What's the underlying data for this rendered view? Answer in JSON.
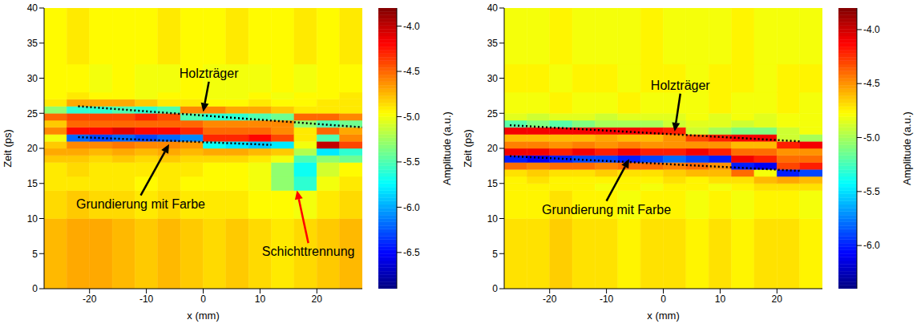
{
  "chart_data": [
    {
      "type": "heatmap",
      "xlabel": "x (mm)",
      "ylabel": "Zeit (ps)",
      "xlim": [
        -28,
        28
      ],
      "ylim": [
        0,
        40
      ],
      "xticks": [
        -20,
        -10,
        0,
        10,
        20
      ],
      "yticks": [
        0,
        5,
        10,
        15,
        20,
        25,
        30,
        35,
        40
      ],
      "x_edges": [
        -28,
        -24,
        -20,
        -16,
        -12,
        -8,
        -4,
        0,
        4,
        8,
        12,
        16,
        20,
        24,
        28
      ],
      "y_edges": [
        0,
        10,
        14,
        16,
        18,
        19,
        20,
        21,
        22,
        23,
        24,
        25,
        26,
        27,
        28,
        32,
        40
      ],
      "values": [
        [
          -4.75,
          -4.7,
          -4.7,
          -4.75,
          -4.8,
          -4.75,
          -4.8,
          -4.85,
          -4.8,
          -4.85,
          -4.9,
          -4.85,
          -4.8,
          -4.75
        ],
        [
          -4.85,
          -4.8,
          -4.85,
          -4.85,
          -4.9,
          -4.85,
          -4.9,
          -4.9,
          -4.9,
          -4.95,
          -4.95,
          -5.0,
          -4.9,
          -4.85
        ],
        [
          -4.9,
          -4.9,
          -4.9,
          -4.9,
          -4.95,
          -4.9,
          -4.95,
          -4.95,
          -4.95,
          -5.0,
          -5.3,
          -5.6,
          -5.0,
          -4.9
        ],
        [
          -4.9,
          -4.85,
          -4.9,
          -4.9,
          -4.9,
          -4.9,
          -4.9,
          -4.95,
          -4.95,
          -5.0,
          -5.3,
          -5.7,
          -5.1,
          -4.95
        ],
        [
          -4.8,
          -4.8,
          -4.85,
          -4.8,
          -4.85,
          -4.8,
          -4.85,
          -4.85,
          -4.85,
          -4.9,
          -5.0,
          -5.5,
          -5.3,
          -5.4
        ],
        [
          -4.7,
          -4.7,
          -4.75,
          -4.7,
          -4.75,
          -4.7,
          -4.75,
          -4.7,
          -4.7,
          -4.75,
          -4.8,
          -5.2,
          -5.8,
          -5.6
        ],
        [
          -4.8,
          -4.6,
          -4.6,
          -4.55,
          -4.6,
          -4.6,
          -4.65,
          -5.7,
          -5.8,
          -5.9,
          -5.8,
          -5.0,
          -4.0,
          -4.4
        ],
        [
          -5.0,
          -6.2,
          -6.3,
          -6.2,
          -6.3,
          -6.2,
          -6.1,
          -4.3,
          -4.3,
          -4.2,
          -4.4,
          -4.9,
          -5.5,
          -4.6
        ],
        [
          -4.6,
          -4.2,
          -4.2,
          -4.1,
          -4.2,
          -4.2,
          -4.3,
          -4.5,
          -4.5,
          -4.5,
          -4.6,
          -4.9,
          -4.5,
          -4.7
        ],
        [
          -4.8,
          -4.5,
          -4.5,
          -4.5,
          -4.5,
          -4.5,
          -4.5,
          -4.6,
          -4.6,
          -4.6,
          -4.6,
          -5.3,
          -5.5,
          -5.4
        ],
        [
          -4.5,
          -4.4,
          -4.4,
          -4.4,
          -4.3,
          -4.4,
          -5.5,
          -5.6,
          -5.6,
          -5.5,
          -5.4,
          -4.5,
          -4.5,
          -4.6
        ],
        [
          -5.3,
          -5.6,
          -5.6,
          -5.5,
          -5.6,
          -5.5,
          -4.6,
          -4.6,
          -4.7,
          -4.7,
          -4.8,
          -4.9,
          -4.9,
          -4.9
        ],
        [
          -4.9,
          -4.7,
          -4.7,
          -4.7,
          -4.8,
          -4.9,
          -4.9,
          -4.95,
          -4.95,
          -4.9,
          -4.95,
          -4.95,
          -4.9,
          -4.9
        ],
        [
          -4.95,
          -4.9,
          -4.95,
          -4.95,
          -5.0,
          -4.95,
          -4.95,
          -5.0,
          -5.0,
          -4.95,
          -5.0,
          -4.95,
          -4.95,
          -4.9
        ],
        [
          -4.95,
          -4.95,
          -5.0,
          -4.95,
          -5.0,
          -5.0,
          -4.95,
          -5.0,
          -5.0,
          -5.0,
          -4.95,
          -5.0,
          -4.95,
          -4.95
        ],
        [
          -4.95,
          -4.9,
          -4.95,
          -4.95,
          -4.95,
          -4.9,
          -4.95,
          -4.95,
          -4.9,
          -4.95,
          -4.95,
          -4.9,
          -4.95,
          -4.9
        ]
      ],
      "colorbar": {
        "label": "Amplitude (a.u.)",
        "lim": [
          -6.9,
          -3.8
        ],
        "ticks": [
          {
            "value": -4.0,
            "label": "-4.0"
          },
          {
            "value": -4.5,
            "label": "-4.5"
          },
          {
            "value": -5.0,
            "label": "-5.0"
          },
          {
            "value": -5.5,
            "label": "-5.5"
          },
          {
            "value": -6.0,
            "label": "-6.0"
          },
          {
            "value": -6.5,
            "label": "-6.5"
          }
        ]
      },
      "lines": [
        {
          "x": [
            -22,
            28
          ],
          "y": [
            26,
            23
          ],
          "line_style": "dotted",
          "color": "#000000"
        },
        {
          "x": [
            -22,
            12
          ],
          "y": [
            21.6,
            20.5
          ],
          "line_style": "dotted",
          "color": "#000000"
        }
      ],
      "annotations": [
        {
          "text": "Holzträger",
          "text_x": 1,
          "text_y": 29.5,
          "x": 0,
          "y": 25.2,
          "color": "#000000"
        },
        {
          "text": "Grundierung mit Farbe",
          "text_x": -11,
          "text_y": 13.3,
          "x": -6,
          "y": 20.6,
          "color": "#000000"
        },
        {
          "text": "Schichttrennung",
          "text_x": 18.5,
          "text_y": 6.5,
          "x": 16.5,
          "y": 14,
          "color": "#ff0000"
        }
      ]
    },
    {
      "type": "heatmap",
      "xlabel": "x (mm)",
      "ylabel": "Zeit (ps)",
      "xlim": [
        -28,
        28
      ],
      "ylim": [
        0,
        40
      ],
      "xticks": [
        -20,
        -10,
        0,
        10,
        20
      ],
      "yticks": [
        0,
        5,
        10,
        15,
        20,
        25,
        30,
        35,
        40
      ],
      "x_edges": [
        -28,
        -24,
        -20,
        -16,
        -12,
        -8,
        -4,
        0,
        4,
        8,
        12,
        16,
        20,
        24,
        28
      ],
      "y_edges": [
        0,
        10,
        14,
        15,
        16,
        17,
        18,
        19,
        20,
        21,
        22,
        23,
        24,
        25,
        28,
        32,
        40
      ],
      "values": [
        [
          -4.7,
          -4.7,
          -4.65,
          -4.7,
          -4.7,
          -4.75,
          -4.7,
          -4.7,
          -4.75,
          -4.7,
          -4.75,
          -4.7,
          -4.7,
          -4.75
        ],
        [
          -4.75,
          -4.75,
          -4.7,
          -4.75,
          -4.75,
          -4.8,
          -4.75,
          -4.75,
          -4.8,
          -4.75,
          -4.8,
          -4.75,
          -4.75,
          -4.8
        ],
        [
          -4.75,
          -4.75,
          -4.75,
          -4.75,
          -4.8,
          -4.75,
          -4.8,
          -4.75,
          -4.75,
          -4.8,
          -4.75,
          -4.7,
          -4.7,
          -4.7
        ],
        [
          -4.75,
          -4.7,
          -4.75,
          -4.75,
          -4.75,
          -4.75,
          -4.75,
          -4.7,
          -4.75,
          -4.7,
          -4.7,
          -4.6,
          -4.55,
          -4.6
        ],
        [
          -4.7,
          -4.65,
          -4.7,
          -4.7,
          -4.65,
          -4.7,
          -4.7,
          -4.65,
          -4.6,
          -4.6,
          -4.4,
          -4.8,
          -6.0,
          -5.9
        ],
        [
          -4.4,
          -4.45,
          -4.4,
          -4.4,
          -4.45,
          -4.4,
          -4.4,
          -4.45,
          -4.4,
          -4.5,
          -6.0,
          -6.1,
          -4.3,
          -4.2
        ],
        [
          -6.0,
          -6.1,
          -6.0,
          -5.9,
          -5.9,
          -6.0,
          -5.9,
          -5.8,
          -5.9,
          -6.0,
          -4.1,
          -4.2,
          -4.4,
          -4.4
        ],
        [
          -4.1,
          -4.1,
          -4.2,
          -4.1,
          -4.2,
          -4.1,
          -4.2,
          -4.2,
          -4.1,
          -4.2,
          -4.4,
          -4.4,
          -4.5,
          -4.5
        ],
        [
          -4.45,
          -4.45,
          -4.5,
          -4.45,
          -4.5,
          -4.45,
          -4.5,
          -4.5,
          -4.5,
          -4.5,
          -4.6,
          -4.6,
          -4.2,
          -4.1
        ],
        [
          -4.6,
          -4.6,
          -4.6,
          -4.6,
          -4.55,
          -4.6,
          -4.6,
          -4.5,
          -4.3,
          -4.2,
          -4.1,
          -4.1,
          -4.9,
          -5.0
        ],
        [
          -4.1,
          -4.1,
          -4.1,
          -4.1,
          -4.1,
          -4.1,
          -4.15,
          -4.2,
          -4.9,
          -5.0,
          -5.1,
          -5.1,
          -4.9,
          -4.8
        ],
        [
          -5.2,
          -5.1,
          -5.2,
          -5.1,
          -5.0,
          -5.0,
          -5.0,
          -4.9,
          -4.85,
          -4.85,
          -4.9,
          -4.85,
          -4.8,
          -4.8
        ],
        [
          -4.85,
          -4.9,
          -4.85,
          -4.85,
          -4.9,
          -4.85,
          -4.85,
          -4.85,
          -4.8,
          -4.85,
          -4.8,
          -4.85,
          -4.8,
          -4.8
        ],
        [
          -4.8,
          -4.8,
          -4.75,
          -4.8,
          -4.8,
          -4.75,
          -4.8,
          -4.8,
          -4.8,
          -4.75,
          -4.8,
          -4.8,
          -4.75,
          -4.8
        ],
        [
          -4.75,
          -4.75,
          -4.8,
          -4.75,
          -4.75,
          -4.8,
          -4.75,
          -4.75,
          -4.8,
          -4.75,
          -4.75,
          -4.8,
          -4.75,
          -4.75
        ],
        [
          -4.8,
          -4.8,
          -4.75,
          -4.8,
          -4.8,
          -4.8,
          -4.75,
          -4.8,
          -4.8,
          -4.8,
          -4.75,
          -4.8,
          -4.8,
          -4.8
        ]
      ],
      "colorbar": {
        "label": "Amplitude (a.u.)",
        "lim": [
          -6.4,
          -3.8
        ],
        "ticks": [
          {
            "value": -4.0,
            "label": "-4.0"
          },
          {
            "value": -4.5,
            "label": "-4.5"
          },
          {
            "value": -5.0,
            "label": "-5.0"
          },
          {
            "value": -5.5,
            "label": "-5.5"
          },
          {
            "value": -6.0,
            "label": "-6.0"
          }
        ]
      },
      "lines": [
        {
          "x": [
            -27,
            24
          ],
          "y": [
            23.3,
            21
          ],
          "line_style": "dotted",
          "color": "#000000"
        },
        {
          "x": [
            -27,
            24
          ],
          "y": [
            18.9,
            16.8
          ],
          "line_style": "dotted",
          "color": "#000000"
        }
      ],
      "annotations": [
        {
          "text": "Holzträger",
          "text_x": 3,
          "text_y": 27.8,
          "x": 2,
          "y": 22.4,
          "color": "#000000"
        },
        {
          "text": "Grundierung mit Farbe",
          "text_x": -10,
          "text_y": 12.5,
          "x": -6,
          "y": 18.5,
          "color": "#000000"
        }
      ]
    }
  ]
}
